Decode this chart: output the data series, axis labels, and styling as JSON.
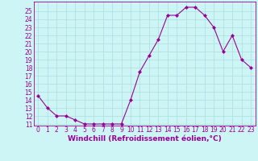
{
  "x": [
    0,
    1,
    2,
    3,
    4,
    5,
    6,
    7,
    8,
    9,
    10,
    11,
    12,
    13,
    14,
    15,
    16,
    17,
    18,
    19,
    20,
    21,
    22,
    23
  ],
  "y": [
    14.5,
    13.0,
    12.0,
    12.0,
    11.5,
    11.0,
    11.0,
    11.0,
    11.0,
    11.0,
    14.0,
    17.5,
    19.5,
    21.5,
    24.5,
    24.5,
    25.5,
    25.5,
    24.5,
    23.0,
    20.0,
    22.0,
    19.0,
    18.0
  ],
  "line_color": "#990099",
  "marker": "D",
  "markersize": 2.0,
  "linewidth": 0.8,
  "bg_color": "#cef5f5",
  "grid_color": "#aadddd",
  "xlabel": "Windchill (Refroidissement éolien,°C)",
  "xlabel_fontsize": 6.5,
  "tick_fontsize": 5.5,
  "ylim_min": 10.8,
  "ylim_max": 26.2,
  "xlim_min": -0.5,
  "xlim_max": 23.5,
  "yticks": [
    11,
    12,
    13,
    14,
    15,
    16,
    17,
    18,
    19,
    20,
    21,
    22,
    23,
    24,
    25
  ],
  "xticks": [
    0,
    1,
    2,
    3,
    4,
    5,
    6,
    7,
    8,
    9,
    10,
    11,
    12,
    13,
    14,
    15,
    16,
    17,
    18,
    19,
    20,
    21,
    22,
    23
  ]
}
